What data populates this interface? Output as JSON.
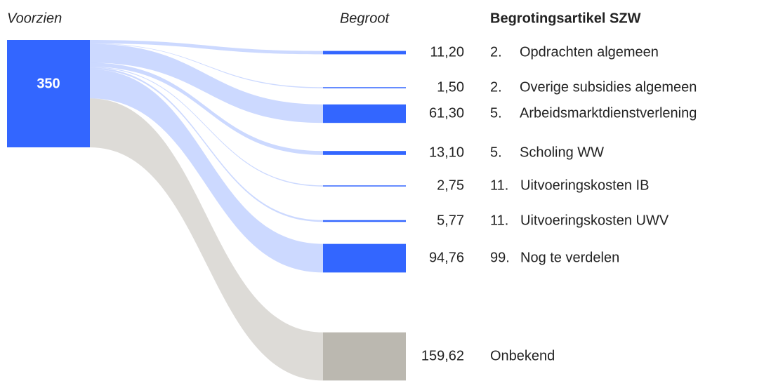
{
  "chart_data": {
    "type": "sankey",
    "source_header": "Voorzien",
    "target_header": "Begroot",
    "label_header": "Begrotingsartikel SZW",
    "source_value": 350,
    "source_color": "#3366ff",
    "articles": [
      "2.",
      "2.",
      "5.",
      "5.",
      "11.",
      "11.",
      "99.",
      null
    ],
    "categories": [
      "Opdrachten algemeen",
      "Overige subsidies algemeen",
      "Arbeidsmarktdienstverlening",
      "Scholing WW",
      "Uitvoeringskosten IB",
      "Uitvoeringskosten UWV",
      "Nog te verdelen",
      "Onbekend"
    ],
    "values": [
      11.2,
      1.5,
      61.3,
      13.1,
      2.75,
      5.77,
      94.76,
      159.62
    ],
    "value_labels": [
      "11,20",
      "1,50",
      "61,30",
      "13,10",
      "2,75",
      "5,77",
      "94,76",
      "159,62"
    ],
    "colors": [
      "#3366ff",
      "#3366ff",
      "#3366ff",
      "#3366ff",
      "#3366ff",
      "#3366ff",
      "#3366ff",
      "#bbb8b0"
    ]
  }
}
